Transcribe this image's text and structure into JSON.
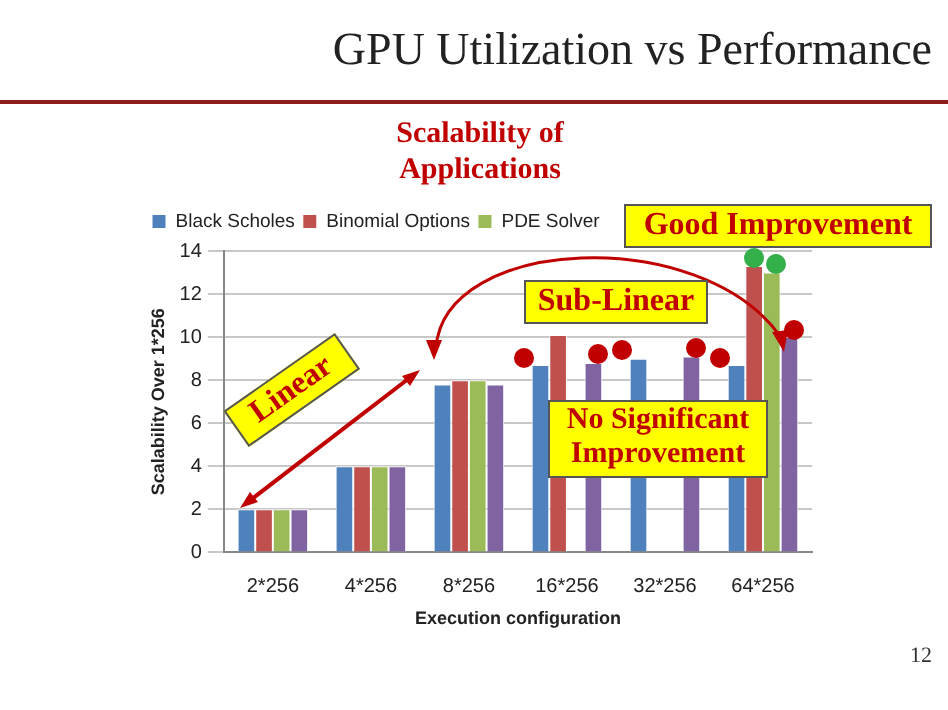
{
  "chart_data": {
    "type": "bar",
    "title": "GPU Utilization vs Performance",
    "subtitle": "Scalability of Applications",
    "xlabel": "Execution configuration",
    "ylabel": "Scalability Over 1*256",
    "categories": [
      "2*256",
      "4*256",
      "8*256",
      "16*256",
      "32*256",
      "64*256"
    ],
    "series": [
      {
        "name": "Black Scholes",
        "color": "#4f81bd",
        "values": [
          2,
          4,
          7.8,
          8.7,
          9.0,
          8.7
        ]
      },
      {
        "name": "Binomial Options",
        "color": "#c0504d",
        "values": [
          2,
          4,
          8,
          10.1,
          null,
          13.3
        ]
      },
      {
        "name": "PDE Solver",
        "color": "#9bbb59",
        "values": [
          2,
          4,
          8,
          null,
          null,
          13.0
        ]
      },
      {
        "color": "#8064a2",
        "values": [
          2,
          4,
          7.8,
          8.8,
          9.1,
          10.0
        ]
      }
    ],
    "ylim": [
      0,
      14
    ],
    "yticks": [
      0,
      2,
      4,
      6,
      8,
      10,
      12,
      14
    ],
    "grid": "y",
    "legend": "top left",
    "annotations": [
      "Linear",
      "Sub-Linear",
      "No Significant Improvement",
      "Good Improvement",
      "12"
    ]
  }
}
